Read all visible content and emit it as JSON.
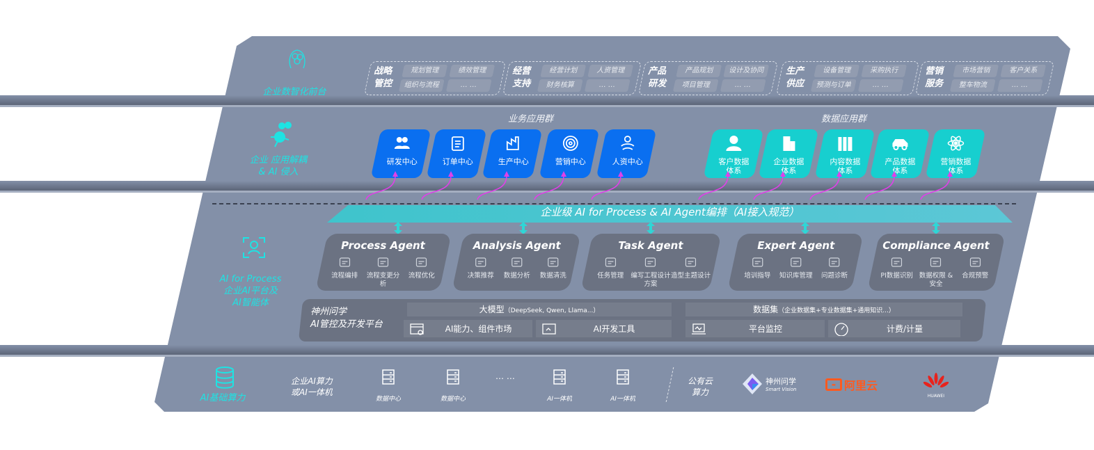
{
  "layers": {
    "front": {
      "label": "企业数智化前台",
      "icon": "brain-icon"
    },
    "apps": {
      "label_line1": "企业 应用解耦",
      "label_line2": "& AI 侵入",
      "icon": "molecule-icon"
    },
    "ai": {
      "label_line1": "AI for Process",
      "label_line2": "企业AI平台及",
      "label_line3": "AI智能体",
      "icon": "face-scan-icon"
    },
    "compute": {
      "label": "AI基础算力",
      "icon": "database-icon"
    }
  },
  "front_groups": [
    {
      "title": "战略管控",
      "items": [
        "规划管理",
        "绩效管理",
        "组织与流程",
        "… …"
      ]
    },
    {
      "title": "经营支持",
      "items": [
        "经营计划",
        "人资管理",
        "财务核算",
        "… …"
      ]
    },
    {
      "title": "产品研发",
      "items": [
        "产品规划",
        "设计及协同",
        "项目管理",
        "… …"
      ]
    },
    {
      "title": "生产供应",
      "items": [
        "设备管理",
        "采购执行",
        "预测与订单",
        "… …"
      ]
    },
    {
      "title": "营销服务",
      "items": [
        "市场营销",
        "客户关系",
        "整车物流",
        "… …"
      ]
    }
  ],
  "business_apps": {
    "title": "业务应用群",
    "items": [
      {
        "label": "研发中心",
        "icon": "users-icon"
      },
      {
        "label": "订单中心",
        "icon": "clipboard-icon"
      },
      {
        "label": "生产中心",
        "icon": "factory-icon"
      },
      {
        "label": "营销中心",
        "icon": "target-icon"
      },
      {
        "label": "人资中心",
        "icon": "people-icon"
      }
    ]
  },
  "data_apps": {
    "title": "数据应用群",
    "items": [
      {
        "label": "客户数据体系",
        "icon": "user-icon"
      },
      {
        "label": "企业数据体系",
        "icon": "building-icon"
      },
      {
        "label": "内容数据体系",
        "icon": "books-icon"
      },
      {
        "label": "产品数据体系",
        "icon": "car-icon"
      },
      {
        "label": "营销数据体系",
        "icon": "atom-icon"
      }
    ]
  },
  "orchestration_banner": "企业级 AI for Process & AI Agent编排（AI接入规范）",
  "agents": [
    {
      "title": "Process Agent",
      "items": [
        "流程编排",
        "流程变更分析",
        "流程优化"
      ]
    },
    {
      "title": "Analysis Agent",
      "items": [
        "决策推荐",
        "数据分析",
        "数据清洗"
      ]
    },
    {
      "title": "Task Agent",
      "items": [
        "任务管理",
        "编写工程设计方案",
        "造型主题设计"
      ]
    },
    {
      "title": "Expert Agent",
      "items": [
        "培训指导",
        "知识库管理",
        "问题诊断"
      ]
    },
    {
      "title": "Compliance Agent",
      "items": [
        "PI数据识别",
        "数据权限 & 安全",
        "合规预警"
      ]
    }
  ],
  "platform": {
    "title_line1": "神州问学",
    "title_line2": "AI管控及开发平台",
    "model_title": "大模型",
    "model_note": "（DeepSeek, Qwen, Llama...）",
    "dataset_title": "数据集",
    "dataset_note": "（企业数据集+专业数据集+通用知识...）",
    "tools": [
      {
        "label": "AI能力、组件市场",
        "icon": "market-icon"
      },
      {
        "label": "AI开发工具",
        "icon": "dev-tool-icon"
      },
      {
        "label": "平台监控",
        "icon": "monitor-icon"
      },
      {
        "label": "计费/计量",
        "icon": "gauge-icon"
      }
    ]
  },
  "compute": {
    "private_label_line1": "企业AI算力",
    "private_label_line2": "或AI一体机",
    "servers": [
      "数据中心",
      "数据中心",
      "AI一体机",
      "AI一体机"
    ],
    "ellipsis": "… …",
    "public_label_line1": "公有云",
    "public_label_line2": "算力",
    "vendors": [
      {
        "name": "神州问学",
        "sub": "Smart Vision",
        "color": "#7b5cf0"
      },
      {
        "name": "阿里云",
        "color": "#ff5a1f"
      },
      {
        "name": "HUAWEI",
        "color": "#e8221c"
      }
    ]
  },
  "colors": {
    "panel": "#8390a8",
    "business_card": "#0a6ff0",
    "data_card": "#17cfcf",
    "agent_box": "#6b7282",
    "accent_cyan": "#1ee3e3",
    "connector": "#e040e8"
  }
}
